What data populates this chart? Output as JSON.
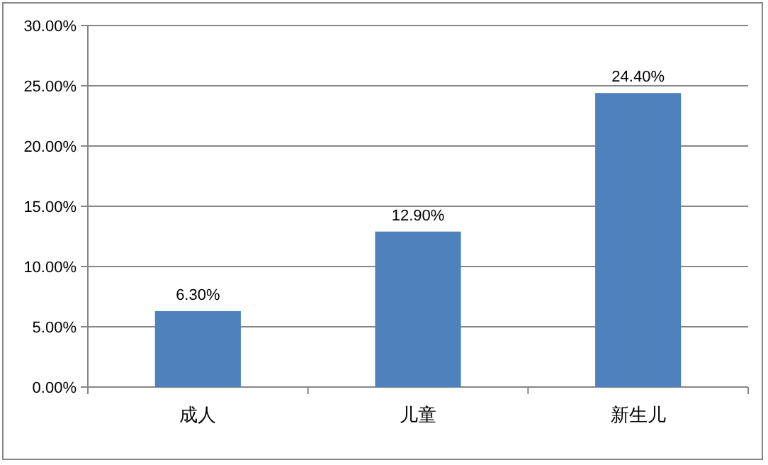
{
  "chart_data": {
    "type": "bar",
    "categories": [
      "成人",
      "儿童",
      "新生儿"
    ],
    "values": [
      6.3,
      12.9,
      24.4
    ],
    "color": "#4f81bd",
    "value_labels": [
      "6.30%",
      "12.90%",
      "24.40%"
    ],
    "ylim": [
      0,
      30
    ],
    "yticks": [
      {
        "value": 0,
        "label": "0.00%"
      },
      {
        "value": 5,
        "label": "5.00%"
      },
      {
        "value": 10,
        "label": "10.00%"
      },
      {
        "value": 15,
        "label": "15.00%"
      },
      {
        "value": 20,
        "label": "20.00%"
      },
      {
        "value": 25,
        "label": "25.00%"
      },
      {
        "value": 30,
        "label": "30.00%"
      }
    ],
    "grid": "y"
  }
}
